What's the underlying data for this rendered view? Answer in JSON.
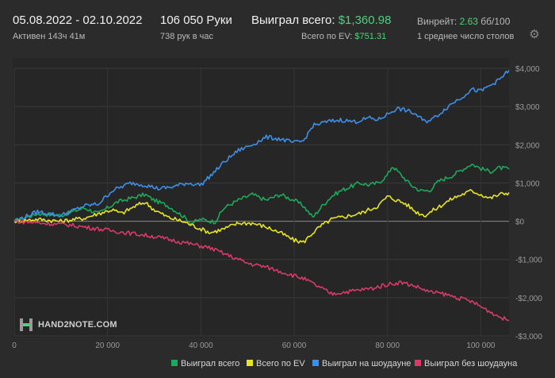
{
  "header": {
    "period": "05.08.2022 - 02.10.2022",
    "active": "Активен 143ч 41м",
    "hands": "106 050 Руки",
    "hands_per_hour": "738 рук в час",
    "won_total_label": "Выиграл всего:",
    "won_total_value": "$1,360.98",
    "ev_total_label": "Всего по EV:",
    "ev_total_value": "$751.31",
    "winrate_label": "Винрейт:",
    "winrate_value": "2.63",
    "winrate_unit": "бб/100",
    "avg_tables": "1 среднее число столов"
  },
  "logo": {
    "text": "HAND2NOTE.COM"
  },
  "icons": {
    "settings": "gear-icon",
    "logo": "hand2note-logo-icon"
  },
  "chart_data": {
    "type": "line",
    "title": "",
    "xlabel": "",
    "ylabel": "",
    "xlim": [
      0,
      106050
    ],
    "ylim": [
      -3000,
      4000
    ],
    "grid": true,
    "legend": "bottom-center",
    "x_ticks": [
      0,
      20000,
      40000,
      60000,
      80000,
      100000
    ],
    "x_tick_labels": [
      "0",
      "20 000",
      "40 000",
      "60 000",
      "80 000",
      "100 000"
    ],
    "y_ticks": [
      4000,
      3000,
      2000,
      1000,
      0,
      -1000,
      -2000,
      -3000
    ],
    "y_tick_labels": [
      "$4,000",
      "$3,000",
      "$2,000",
      "$1,000",
      "$0",
      "-$1,000",
      "-$2,000",
      "-$3,000"
    ],
    "series": [
      {
        "name": "Выиграл всего",
        "color": "#1ea85a",
        "points": [
          [
            0,
            0
          ],
          [
            5000,
            200
          ],
          [
            10000,
            150
          ],
          [
            15000,
            350
          ],
          [
            18000,
            200
          ],
          [
            22000,
            500
          ],
          [
            25000,
            600
          ],
          [
            28000,
            700
          ],
          [
            30000,
            550
          ],
          [
            33000,
            400
          ],
          [
            36000,
            150
          ],
          [
            38000,
            -50
          ],
          [
            40000,
            50
          ],
          [
            43000,
            -20
          ],
          [
            45000,
            350
          ],
          [
            48000,
            550
          ],
          [
            51000,
            700
          ],
          [
            54000,
            550
          ],
          [
            57000,
            700
          ],
          [
            60000,
            550
          ],
          [
            62000,
            400
          ],
          [
            64000,
            100
          ],
          [
            66000,
            400
          ],
          [
            68000,
            650
          ],
          [
            70000,
            800
          ],
          [
            72000,
            900
          ],
          [
            74000,
            1000
          ],
          [
            76000,
            950
          ],
          [
            78000,
            1000
          ],
          [
            80000,
            1200
          ],
          [
            81000,
            1450
          ],
          [
            83000,
            1200
          ],
          [
            85000,
            950
          ],
          [
            87000,
            800
          ],
          [
            89000,
            800
          ],
          [
            91000,
            1050
          ],
          [
            94000,
            1200
          ],
          [
            96000,
            1350
          ],
          [
            98000,
            1500
          ],
          [
            100000,
            1380
          ],
          [
            102000,
            1300
          ],
          [
            104000,
            1400
          ],
          [
            106050,
            1360
          ]
        ]
      },
      {
        "name": "Всего по EV",
        "color": "#e8e61e",
        "points": [
          [
            0,
            0
          ],
          [
            5000,
            50
          ],
          [
            10000,
            0
          ],
          [
            15000,
            80
          ],
          [
            18000,
            200
          ],
          [
            21000,
            300
          ],
          [
            23000,
            200
          ],
          [
            26000,
            400
          ],
          [
            28000,
            500
          ],
          [
            30000,
            300
          ],
          [
            33000,
            100
          ],
          [
            36000,
            0
          ],
          [
            39000,
            -150
          ],
          [
            42000,
            -300
          ],
          [
            45000,
            -200
          ],
          [
            48000,
            -50
          ],
          [
            51000,
            -50
          ],
          [
            54000,
            -150
          ],
          [
            57000,
            -300
          ],
          [
            60000,
            -500
          ],
          [
            62000,
            -550
          ],
          [
            64000,
            -300
          ],
          [
            66000,
            -100
          ],
          [
            68000,
            50
          ],
          [
            70000,
            100
          ],
          [
            72000,
            150
          ],
          [
            74000,
            200
          ],
          [
            76000,
            300
          ],
          [
            78000,
            400
          ],
          [
            80000,
            650
          ],
          [
            82000,
            550
          ],
          [
            84000,
            450
          ],
          [
            86000,
            250
          ],
          [
            88000,
            150
          ],
          [
            90000,
            300
          ],
          [
            92000,
            450
          ],
          [
            94000,
            600
          ],
          [
            96000,
            700
          ],
          [
            98000,
            800
          ],
          [
            100000,
            700
          ],
          [
            102000,
            600
          ],
          [
            104000,
            700
          ],
          [
            106050,
            751
          ]
        ]
      },
      {
        "name": "Выиграл на шоудауне",
        "color": "#3e8fe8",
        "points": [
          [
            0,
            0
          ],
          [
            5000,
            250
          ],
          [
            10000,
            150
          ],
          [
            15000,
            400
          ],
          [
            18000,
            450
          ],
          [
            21000,
            800
          ],
          [
            25000,
            1000
          ],
          [
            28000,
            950
          ],
          [
            31000,
            850
          ],
          [
            34000,
            900
          ],
          [
            37000,
            1000
          ],
          [
            40000,
            950
          ],
          [
            43000,
            1300
          ],
          [
            45000,
            1550
          ],
          [
            48000,
            1850
          ],
          [
            51000,
            2000
          ],
          [
            54000,
            2200
          ],
          [
            57000,
            2150
          ],
          [
            60000,
            2050
          ],
          [
            62000,
            2100
          ],
          [
            64000,
            2500
          ],
          [
            67000,
            2600
          ],
          [
            70000,
            2650
          ],
          [
            73000,
            2600
          ],
          [
            76000,
            2700
          ],
          [
            78000,
            2650
          ],
          [
            80000,
            2800
          ],
          [
            82000,
            2950
          ],
          [
            84000,
            2900
          ],
          [
            86000,
            2800
          ],
          [
            88000,
            2600
          ],
          [
            90000,
            2700
          ],
          [
            92000,
            2900
          ],
          [
            94000,
            3100
          ],
          [
            96000,
            3250
          ],
          [
            98000,
            3450
          ],
          [
            100000,
            3400
          ],
          [
            102000,
            3550
          ],
          [
            104000,
            3700
          ],
          [
            106050,
            3950
          ]
        ]
      },
      {
        "name": "Выиграл без шоудауна",
        "color": "#d83a6a",
        "points": [
          [
            0,
            0
          ],
          [
            6000,
            -50
          ],
          [
            12000,
            -100
          ],
          [
            18000,
            -200
          ],
          [
            24000,
            -300
          ],
          [
            30000,
            -400
          ],
          [
            36000,
            -550
          ],
          [
            42000,
            -700
          ],
          [
            46000,
            -900
          ],
          [
            50000,
            -1100
          ],
          [
            54000,
            -1200
          ],
          [
            58000,
            -1350
          ],
          [
            62000,
            -1500
          ],
          [
            65000,
            -1700
          ],
          [
            68000,
            -1900
          ],
          [
            71000,
            -1850
          ],
          [
            74000,
            -1800
          ],
          [
            77000,
            -1750
          ],
          [
            80000,
            -1650
          ],
          [
            83000,
            -1600
          ],
          [
            86000,
            -1700
          ],
          [
            89000,
            -1850
          ],
          [
            92000,
            -1900
          ],
          [
            95000,
            -2000
          ],
          [
            98000,
            -2100
          ],
          [
            101000,
            -2300
          ],
          [
            104000,
            -2500
          ],
          [
            106050,
            -2600
          ]
        ]
      }
    ]
  }
}
